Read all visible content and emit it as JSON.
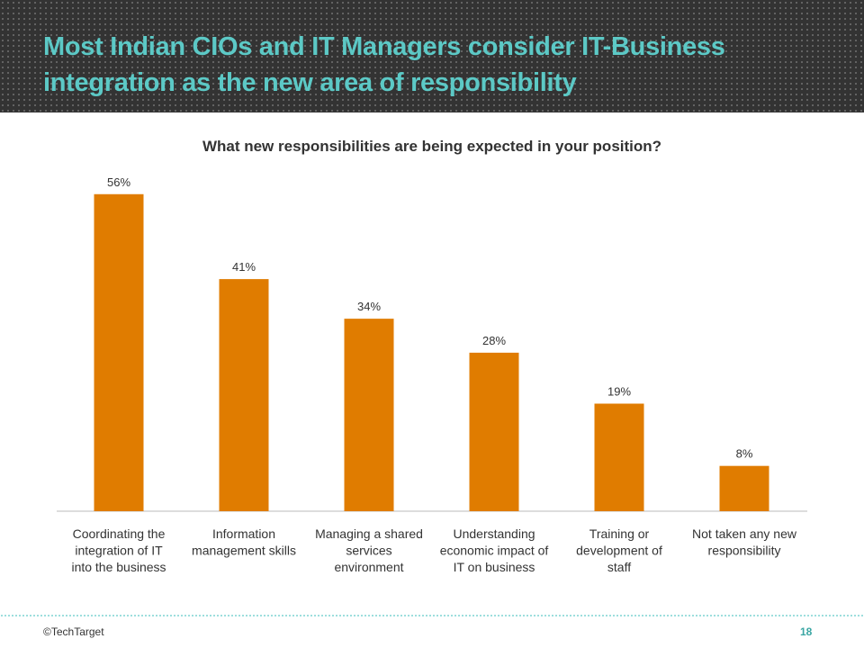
{
  "header": {
    "title": "Most Indian CIOs and IT Managers consider IT-Business integration as the new area of responsibility"
  },
  "footer": {
    "copyright": "©TechTarget",
    "page_number": "18"
  },
  "colors": {
    "bar": "#e07c00",
    "title": "#5cc9c6"
  },
  "chart_data": {
    "type": "bar",
    "title": "What new responsibilities are being expected in your position?",
    "categories": [
      [
        "Coordinating the",
        "integration of IT",
        "into the business"
      ],
      [
        "Information",
        "management skills"
      ],
      [
        "Managing a shared",
        "services",
        "environment"
      ],
      [
        "Understanding",
        "economic impact of",
        "IT on business"
      ],
      [
        "Training or",
        "development of",
        "staff"
      ],
      [
        "Not taken any new",
        "responsibility"
      ]
    ],
    "values": [
      56,
      41,
      34,
      28,
      19,
      8
    ],
    "labels": [
      "56%",
      "41%",
      "34%",
      "28%",
      "19%",
      "8%"
    ],
    "ylim": [
      0,
      60
    ],
    "xlabel": "",
    "ylabel": "",
    "grid": false
  }
}
